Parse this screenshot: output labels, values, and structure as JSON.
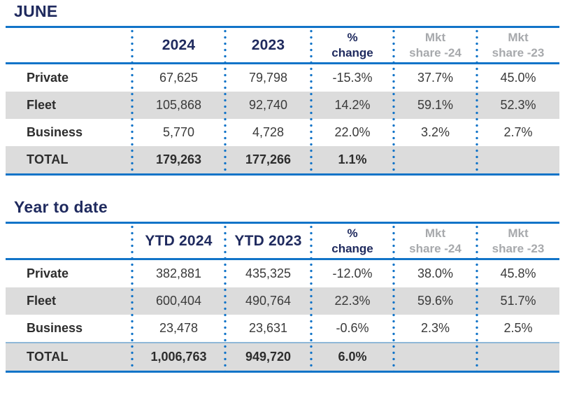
{
  "colors": {
    "navy": "#1f2a5e",
    "blue_line": "#1274c8",
    "dot_blue": "#1274c8",
    "stripe_gray": "#dcdcdc",
    "header_gray": "#a7a9ac",
    "light_blue_line": "#8fb8d8",
    "body_text": "#3a3a3a"
  },
  "june": {
    "title": "JUNE",
    "header": {
      "year1": "2024",
      "year2": "2023",
      "pct_line1": "%",
      "pct_line2": "change",
      "mkt24_line1": "Mkt",
      "mkt24_line2": "share -24",
      "mkt23_line1": "Mkt",
      "mkt23_line2": "share -23"
    },
    "rows": [
      {
        "label": "Private",
        "v1": "67,625",
        "v2": "79,798",
        "pct": "-15.3%",
        "m24": "37.7%",
        "m23": "45.0%"
      },
      {
        "label": "Fleet",
        "v1": "105,868",
        "v2": "92,740",
        "pct": "14.2%",
        "m24": "59.1%",
        "m23": "52.3%"
      },
      {
        "label": "Business",
        "v1": "5,770",
        "v2": "4,728",
        "pct": "22.0%",
        "m24": "3.2%",
        "m23": "2.7%"
      },
      {
        "label": "TOTAL",
        "v1": "179,263",
        "v2": "177,266",
        "pct": "1.1%",
        "m24": "",
        "m23": ""
      }
    ]
  },
  "ytd": {
    "title": "Year to date",
    "header": {
      "year1": "YTD 2024",
      "year2": "YTD 2023",
      "pct_line1": "%",
      "pct_line2": "change",
      "mkt24_line1": "Mkt",
      "mkt24_line2": "share -24",
      "mkt23_line1": "Mkt",
      "mkt23_line2": "share -23"
    },
    "rows": [
      {
        "label": "Private",
        "v1": "382,881",
        "v2": "435,325",
        "pct": "-12.0%",
        "m24": "38.0%",
        "m23": "45.8%"
      },
      {
        "label": "Fleet",
        "v1": "600,404",
        "v2": "490,764",
        "pct": "22.3%",
        "m24": "59.6%",
        "m23": "51.7%"
      },
      {
        "label": "Business",
        "v1": "23,478",
        "v2": "23,631",
        "pct": "-0.6%",
        "m24": "2.3%",
        "m23": "2.5%"
      },
      {
        "label": "TOTAL",
        "v1": "1,006,763",
        "v2": "949,720",
        "pct": "6.0%",
        "m24": "",
        "m23": ""
      }
    ]
  },
  "chart_data": [
    {
      "type": "table",
      "title": "JUNE",
      "columns": [
        "",
        "2024",
        "2023",
        "% change",
        "Mkt share -24",
        "Mkt share -23"
      ],
      "rows": [
        [
          "Private",
          67625,
          79798,
          "-15.3%",
          "37.7%",
          "45.0%"
        ],
        [
          "Fleet",
          105868,
          92740,
          "14.2%",
          "59.1%",
          "52.3%"
        ],
        [
          "Business",
          5770,
          4728,
          "22.0%",
          "3.2%",
          "2.7%"
        ],
        [
          "TOTAL",
          179263,
          177266,
          "1.1%",
          "",
          ""
        ]
      ]
    },
    {
      "type": "table",
      "title": "Year to date",
      "columns": [
        "",
        "YTD 2024",
        "YTD 2023",
        "% change",
        "Mkt share -24",
        "Mkt share -23"
      ],
      "rows": [
        [
          "Private",
          382881,
          435325,
          "-12.0%",
          "38.0%",
          "45.8%"
        ],
        [
          "Fleet",
          600404,
          490764,
          "22.3%",
          "59.6%",
          "51.7%"
        ],
        [
          "Business",
          23478,
          23631,
          "-0.6%",
          "2.3%",
          "2.5%"
        ],
        [
          "TOTAL",
          1006763,
          949720,
          "6.0%",
          "",
          ""
        ]
      ]
    }
  ]
}
